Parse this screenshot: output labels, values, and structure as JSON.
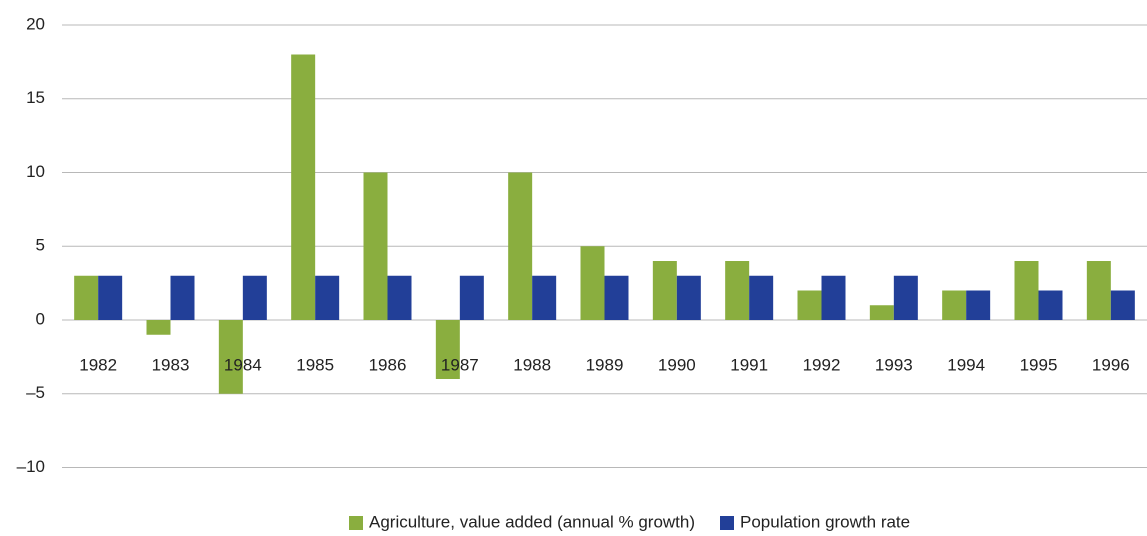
{
  "chart_data": {
    "type": "bar",
    "categories": [
      "1982",
      "1983",
      "1984",
      "1985",
      "1986",
      "1987",
      "1988",
      "1989",
      "1990",
      "1991",
      "1992",
      "1993",
      "1994",
      "1995",
      "1996"
    ],
    "series": [
      {
        "name": "Agriculture, value added (annual % growth)",
        "color": "#8aae3f",
        "values": [
          3,
          -1,
          -5,
          18,
          10,
          -4,
          10,
          5,
          4,
          4,
          2,
          1,
          2,
          4,
          4
        ]
      },
      {
        "name": "Population growth rate",
        "color": "#223f98",
        "values": [
          3,
          3,
          3,
          3,
          3,
          3,
          3,
          3,
          3,
          3,
          3,
          3,
          2,
          2,
          2
        ]
      }
    ],
    "ylim": [
      -10,
      20
    ],
    "yticks": [
      {
        "value": -10,
        "label": "–10"
      },
      {
        "value": -5,
        "label": "–5"
      },
      0,
      5,
      10,
      15,
      20
    ],
    "grid": true,
    "legend": "bottom"
  }
}
